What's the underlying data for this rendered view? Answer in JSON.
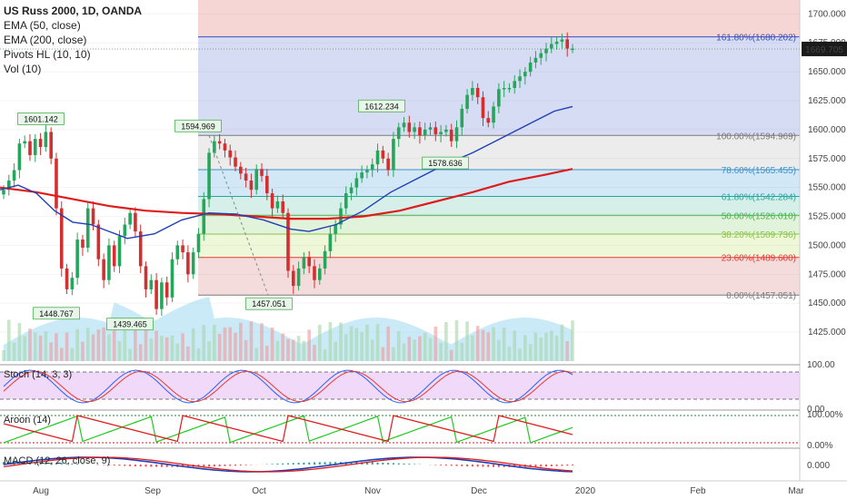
{
  "legend": {
    "title": "US Russ 2000, 1D, OANDA",
    "lines": [
      "EMA (50, close)",
      "EMA (200, close)",
      "Pivots HL (10, 10)",
      "Vol (10)"
    ]
  },
  "chart_data": {
    "type": "candlestick",
    "symbol": "US Russ 2000",
    "interval": "1D",
    "source": "OANDA",
    "ylim": [
      1400,
      1712
    ],
    "y_ticks": [
      1425,
      1450,
      1475,
      1500,
      1525,
      1550,
      1575,
      1600,
      1625,
      1650,
      1675,
      1700
    ],
    "y_tick_labels": [
      "1425.000",
      "1450.000",
      "1475.000",
      "1500.000",
      "1525.000",
      "1550.000",
      "1575.000",
      "1600.000",
      "1625.000",
      "1650.000",
      "1675.000",
      "1700.000"
    ],
    "x_labels": [
      "Aug",
      "Sep",
      "Oct",
      "Nov",
      "Dec",
      "2020",
      "Feb",
      "Mar"
    ],
    "last_price": "1669.705",
    "closes": [
      1548,
      1556,
      1565,
      1588,
      1590,
      1578,
      1592,
      1585,
      1598,
      1575,
      1532,
      1480,
      1462,
      1472,
      1505,
      1498,
      1532,
      1518,
      1488,
      1470,
      1500,
      1482,
      1508,
      1518,
      1528,
      1512,
      1482,
      1462,
      1470,
      1445,
      1468,
      1455,
      1488,
      1500,
      1494,
      1475,
      1494,
      1510,
      1540,
      1580,
      1590,
      1588,
      1582,
      1576,
      1568,
      1562,
      1556,
      1548,
      1566,
      1560,
      1545,
      1532,
      1538,
      1528,
      1478,
      1465,
      1480,
      1490,
      1482,
      1470,
      1480,
      1495,
      1510,
      1518,
      1532,
      1545,
      1550,
      1558,
      1563,
      1565,
      1570,
      1582,
      1575,
      1565,
      1592,
      1602,
      1606,
      1598,
      1602,
      1595,
      1600,
      1602,
      1596,
      1598,
      1600,
      1590,
      1602,
      1618,
      1630,
      1636,
      1628,
      1610,
      1606,
      1620,
      1635,
      1636,
      1636,
      1642,
      1646,
      1650,
      1658,
      1662,
      1666,
      1670,
      1674,
      1676,
      1678,
      1670,
      1670
    ],
    "pivots": [
      {
        "label": "1601.142",
        "type": "high",
        "value": 1601.142
      },
      {
        "label": "1448.767",
        "type": "low",
        "value": 1448.767
      },
      {
        "label": "1439.465",
        "type": "low",
        "value": 1439.465
      },
      {
        "label": "1594.969",
        "type": "high",
        "value": 1594.969
      },
      {
        "label": "1457.051",
        "type": "low",
        "value": 1457.051
      },
      {
        "label": "1612.234",
        "type": "high",
        "value": 1612.234
      },
      {
        "label": "1578.636",
        "type": "low",
        "value": 1578.636
      }
    ],
    "fibonacci": [
      {
        "label": "161.80%(1680.202)",
        "value": 1680.202,
        "color": "#3d4fb5"
      },
      {
        "label": "100.00%(1594.969)",
        "value": 1594.969,
        "color": "#7a7a7a"
      },
      {
        "label": "78.60%(1565.455)",
        "value": 1565.455,
        "color": "#3c8fc8"
      },
      {
        "label": "61.80%(1542.284)",
        "value": 1542.284,
        "color": "#26a69a"
      },
      {
        "label": "50.00%(1526.010)",
        "value": 1526.01,
        "color": "#4caf50"
      },
      {
        "label": "38.20%(1509.736)",
        "value": 1509.736,
        "color": "#8bc34a"
      },
      {
        "label": "23.60%(1489.600)",
        "value": 1489.6,
        "color": "#e53935"
      },
      {
        "label": "0.00%(1457.051)",
        "value": 1457.051,
        "color": "#7a7a7a"
      }
    ],
    "ema50": [
      [
        0,
        1548
      ],
      [
        20,
        1552
      ],
      [
        40,
        1545
      ],
      [
        60,
        1530
      ],
      [
        80,
        1520
      ],
      [
        100,
        1518
      ],
      [
        120,
        1512
      ],
      [
        140,
        1506
      ],
      [
        170,
        1510
      ],
      [
        200,
        1522
      ],
      [
        230,
        1528
      ],
      [
        260,
        1527
      ],
      [
        290,
        1522
      ],
      [
        320,
        1514
      ],
      [
        340,
        1512
      ],
      [
        370,
        1518
      ],
      [
        400,
        1530
      ],
      [
        430,
        1546
      ],
      [
        460,
        1558
      ],
      [
        490,
        1570
      ],
      [
        520,
        1580
      ],
      [
        550,
        1592
      ],
      [
        580,
        1604
      ],
      [
        610,
        1616
      ],
      [
        630,
        1620
      ]
    ],
    "ema200": [
      [
        0,
        1550
      ],
      [
        40,
        1546
      ],
      [
        80,
        1540
      ],
      [
        120,
        1534
      ],
      [
        160,
        1530
      ],
      [
        200,
        1528
      ],
      [
        240,
        1527
      ],
      [
        280,
        1525
      ],
      [
        320,
        1523
      ],
      [
        360,
        1523
      ],
      [
        400,
        1525
      ],
      [
        440,
        1530
      ],
      [
        480,
        1538
      ],
      [
        520,
        1546
      ],
      [
        560,
        1555
      ],
      [
        600,
        1561
      ],
      [
        630,
        1566
      ]
    ],
    "pane_labels": {
      "stoch": "Stoch (14, 3, 3)",
      "aroon": "Aroon (14)",
      "macd": "MACD (12, 26, close, 9)"
    },
    "pane_ticks": {
      "stoch": [
        "100.00",
        "0.00"
      ],
      "aroon": [
        "100.00%",
        "0.00%"
      ],
      "macd": [
        "0.000"
      ]
    },
    "colors": {
      "up": "#26a65b",
      "down": "#d32f2f",
      "ema50": "#1e3fb5",
      "ema200": "#e01b1b",
      "volume": "#9fd8f0"
    }
  }
}
